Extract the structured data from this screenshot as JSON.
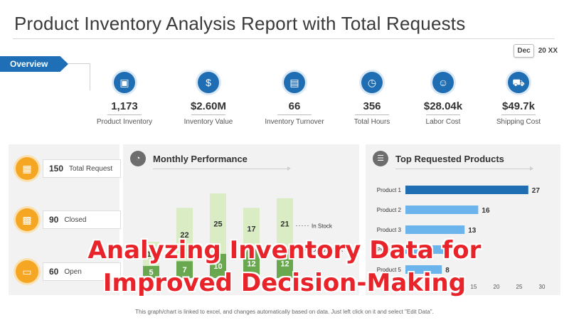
{
  "title": "Product Inventory Analysis Report with Total Requests",
  "date": {
    "month": "Dec",
    "year": "20 XX"
  },
  "overview_tab": "Overview",
  "kpis": [
    {
      "value": "1,173",
      "label": "Product Inventory",
      "icon": "box-icon"
    },
    {
      "value": "$2.60M",
      "label": "Inventory  Value",
      "icon": "money-hand-icon"
    },
    {
      "value": "66",
      "label": "Inventory  Turnover",
      "icon": "hand-box-icon"
    },
    {
      "value": "356",
      "label": "Total Hours",
      "icon": "clock-icon"
    },
    {
      "value": "$28.04k",
      "label": "Labor Cost",
      "icon": "worker-icon"
    },
    {
      "value": "$49.7k",
      "label": "Shipping Cost",
      "icon": "truck-icon"
    }
  ],
  "stats": [
    {
      "value": "150",
      "label": "Total Request",
      "icon": "request-icon"
    },
    {
      "value": "90",
      "label": "Closed",
      "icon": "closed-box-icon"
    },
    {
      "value": "60",
      "label": "Open",
      "icon": "open-box-icon"
    }
  ],
  "monthly_performance": {
    "title": "Monthly Performance",
    "icon": "gauge-icon"
  },
  "top_products": {
    "title": "Top Requested Products",
    "icon": "list-icon"
  },
  "overlay": {
    "line1": "Analyzing Inventory Data for",
    "line2": "Improved Decision-Making"
  },
  "footnote": "This graph/chart is linked to excel, and changes automatically based on data. Just left click on it and select \"Edit Data\".",
  "chart_data": [
    {
      "type": "bar",
      "stacked": true,
      "title": "Monthly Performance",
      "categories": [
        "",
        "",
        "",
        "",
        ""
      ],
      "series": [
        {
          "name": "Out of Stock",
          "values": [
            5,
            7,
            10,
            12,
            12
          ],
          "color": "#6aa84f"
        },
        {
          "name": "In Stock",
          "values": [
            10,
            22,
            25,
            17,
            21
          ],
          "color": "#d9ecc4"
        }
      ],
      "series_labels": [
        "",
        "",
        "",
        "12",
        "12"
      ]
    },
    {
      "type": "bar",
      "orientation": "horizontal",
      "title": "Top Requested Products",
      "categories": [
        "Product 1",
        "Product 2",
        "Product 3",
        "Product 4",
        "Product 5"
      ],
      "values": [
        27,
        16,
        13,
        9,
        8
      ],
      "value_labels": [
        "27",
        "16",
        "13",
        "",
        "8"
      ],
      "colors": [
        "#1f6db3",
        "#6cb4ec",
        "#6cb4ec",
        "#6cb4ec",
        "#6cb4ec"
      ],
      "xlim": [
        0,
        30
      ],
      "xticks": [
        0,
        5,
        10,
        15,
        20,
        25,
        30
      ],
      "xtick_labels": [
        "",
        "",
        "",
        "15",
        "20",
        "25",
        "30"
      ]
    }
  ]
}
